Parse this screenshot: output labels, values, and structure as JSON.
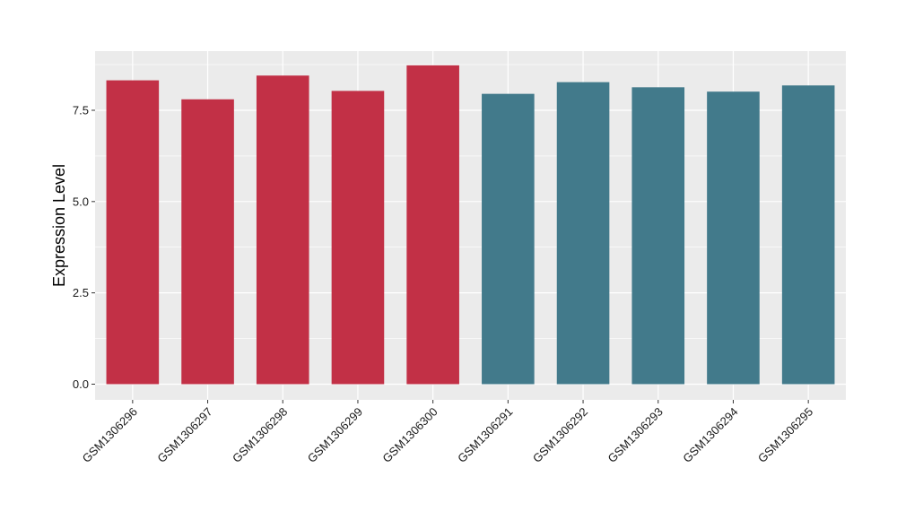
{
  "chart_data": {
    "type": "bar",
    "categories": [
      "GSM1306296",
      "GSM1306297",
      "GSM1306298",
      "GSM1306299",
      "GSM1306300",
      "GSM1306291",
      "GSM1306292",
      "GSM1306293",
      "GSM1306294",
      "GSM1306295"
    ],
    "values": [
      8.32,
      7.8,
      8.45,
      8.03,
      8.73,
      7.95,
      8.27,
      8.13,
      8.01,
      8.18
    ],
    "bar_colors": [
      "#c23046",
      "#c23046",
      "#c23046",
      "#c23046",
      "#c23046",
      "#427a8b",
      "#427a8b",
      "#427a8b",
      "#427a8b",
      "#427a8b"
    ],
    "title": "",
    "xlabel": "",
    "ylabel": "Expression Level",
    "ylim": [
      -0.43,
      9.12
    ],
    "yticks": [
      0.0,
      2.5,
      5.0,
      7.5
    ],
    "ytick_labels": [
      "0.0",
      "2.5",
      "5.0",
      "7.5"
    ],
    "grid": true,
    "panel_color": "#ebebeb",
    "grid_color": "#ffffff"
  }
}
